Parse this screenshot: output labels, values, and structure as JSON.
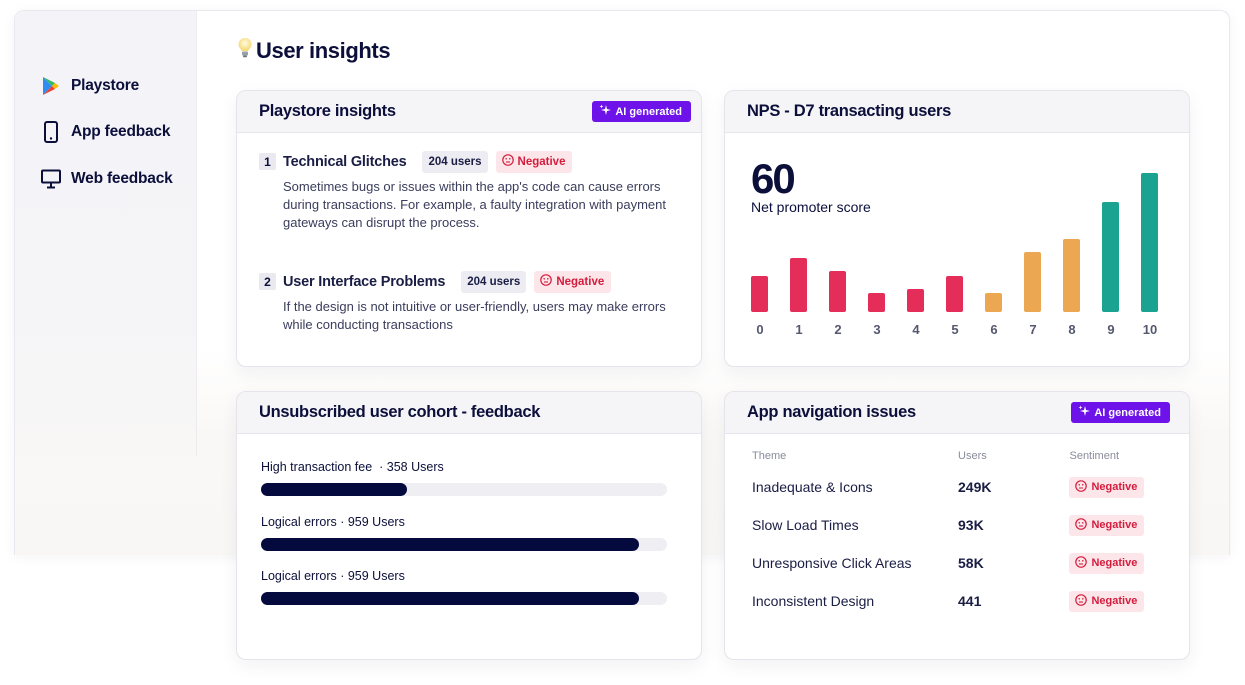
{
  "sidebar": {
    "items": [
      {
        "label": "Playstore",
        "icon": "playstore-icon"
      },
      {
        "label": "App feedback",
        "icon": "mobile-phone-icon"
      },
      {
        "label": "Web feedback",
        "icon": "monitor-icon"
      }
    ]
  },
  "page": {
    "title": "User insights",
    "title_icon": "lightbulb-icon"
  },
  "colors": {
    "navy": "#0b0f3a",
    "ai_purple": "#6d12e8",
    "negative_red": "#d41c3c",
    "negative_bg": "#fde6ea",
    "detractor": "#e42d58",
    "passive": "#eca752",
    "promoter": "#1ba391",
    "progress_fill": "#050a3e"
  },
  "playstore_insights": {
    "title": "Playstore insights",
    "ai_badge": "AI generated",
    "items": [
      {
        "num": "1",
        "title": "Technical Glitches",
        "users": "204 users",
        "sentiment": "Negative",
        "description": "Sometimes bugs or issues within the app's code can cause errors during transactions. For example, a faulty integration with payment gateways can disrupt the process."
      },
      {
        "num": "2",
        "title": "User Interface Problems",
        "users": "204 users",
        "sentiment": "Negative",
        "description": "If the design is not intuitive or user-friendly, users may make errors while conducting transactions"
      }
    ]
  },
  "nps": {
    "title": "NPS - D7 transacting users",
    "score": "60",
    "score_label": "Net promoter score"
  },
  "chart_data": {
    "type": "bar",
    "title": "NPS - D7 transacting users",
    "categories": [
      "0",
      "1",
      "2",
      "3",
      "4",
      "5",
      "6",
      "7",
      "8",
      "9",
      "10"
    ],
    "values": [
      36,
      54,
      41,
      19,
      23,
      36,
      19,
      60,
      73,
      110,
      139
    ],
    "groups": [
      "detractor",
      "detractor",
      "detractor",
      "detractor",
      "detractor",
      "detractor",
      "passive",
      "passive",
      "passive",
      "promoter",
      "promoter"
    ],
    "group_colors": {
      "detractor": "#e42d58",
      "passive": "#eca752",
      "promoter": "#1ba391"
    },
    "xlabel": "",
    "ylabel": "",
    "grid": false,
    "annotation": "60 Net promoter score"
  },
  "cohort": {
    "title": "Unsubscribed user cohort - feedback",
    "items": [
      {
        "label": "High transaction fee",
        "users": "358 Users",
        "percent": 36
      },
      {
        "label": "Logical errors",
        "users": "959 Users",
        "percent": 93
      },
      {
        "label": "Logical errors",
        "users": "959 Users",
        "percent": 93
      }
    ]
  },
  "navigation_issues": {
    "title": "App navigation issues",
    "ai_badge": "AI generated",
    "columns": [
      "Theme",
      "Users",
      "Sentiment"
    ],
    "rows": [
      {
        "theme": "Inadequate & Icons",
        "users": "249K",
        "sentiment": "Negative"
      },
      {
        "theme": "Slow Load Times",
        "users": "93K",
        "sentiment": "Negative"
      },
      {
        "theme": "Unresponsive Click Areas",
        "users": "58K",
        "sentiment": "Negative"
      },
      {
        "theme": "Inconsistent Design",
        "users": "441",
        "sentiment": "Negative"
      }
    ]
  }
}
